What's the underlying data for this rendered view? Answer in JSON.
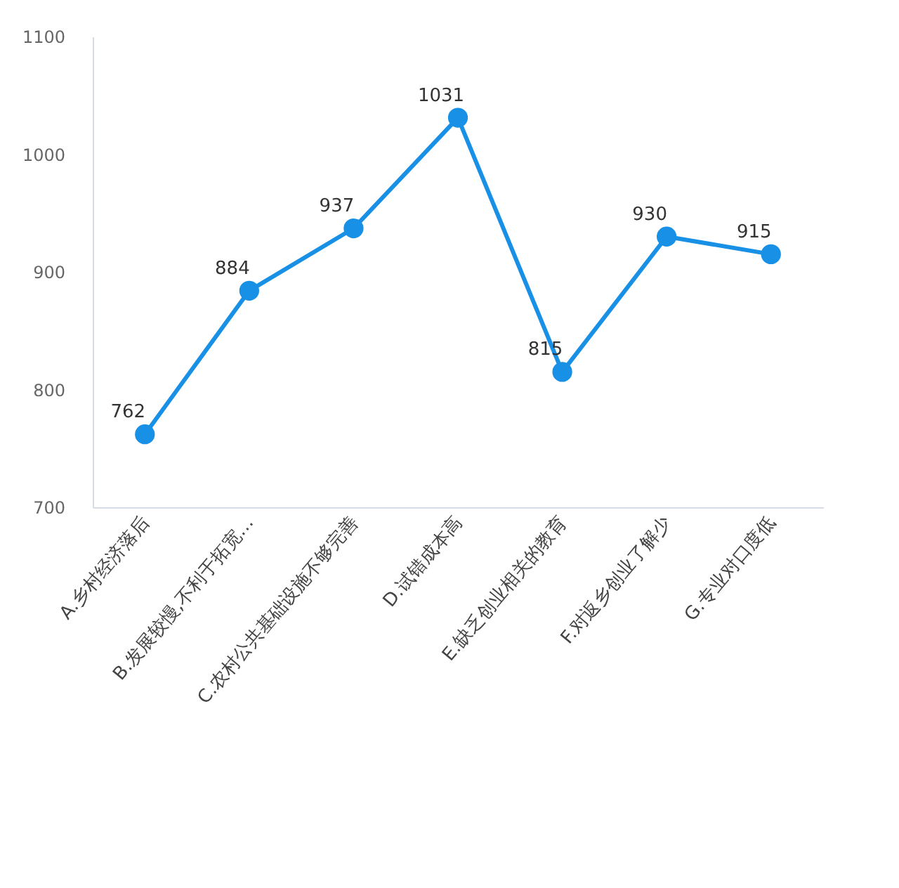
{
  "chart_data": {
    "type": "line",
    "categories": [
      "A.乡村经济落后",
      "B.发展较慢,不利于拓宽…",
      "C.农村公共基础设施不够完善",
      "D.试错成本高",
      "E.缺乏创业相关的教育",
      "F.对返乡创业了解少",
      "G.专业对口度低"
    ],
    "series": [
      {
        "color": "#1890e6",
        "values": [
          762,
          884,
          937,
          1031,
          815,
          930,
          915
        ]
      }
    ],
    "ylim": [
      700,
      1100
    ],
    "yticks": [
      700,
      800,
      900,
      1000,
      1100
    ],
    "data_labels": true,
    "marker": "circle",
    "line_style": "solid",
    "grid": false,
    "legend": false
  }
}
